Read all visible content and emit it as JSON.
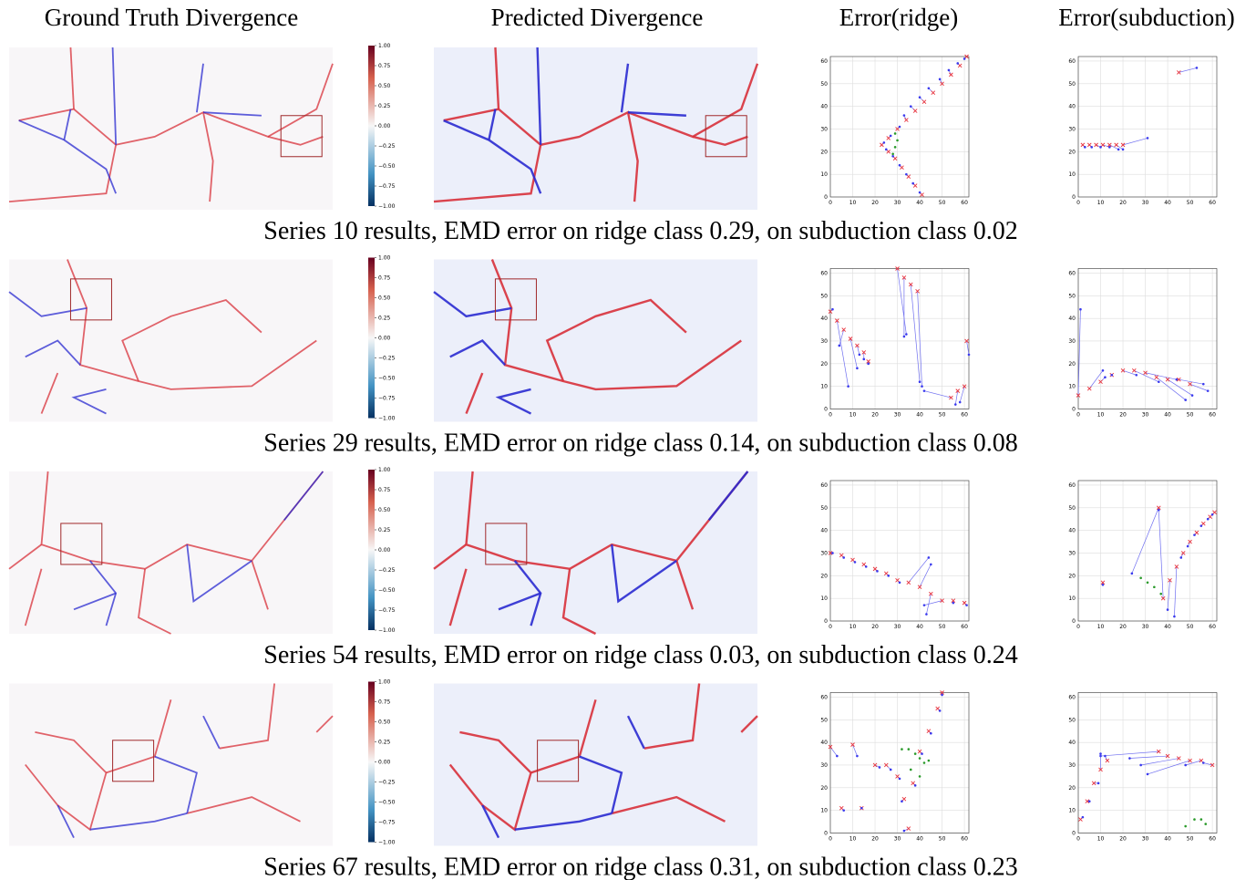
{
  "headers": [
    "Ground Truth Divergence",
    "Predicted Divergence",
    "Error(ridge)",
    "Error(subduction)"
  ],
  "colorbar": {
    "clim": [
      -1,
      1
    ],
    "ticks": [
      {
        "value": 1,
        "label": "1.00"
      },
      {
        "value": 0.75,
        "label": "0.75"
      },
      {
        "value": 0.5,
        "label": "0.50"
      },
      {
        "value": 0.25,
        "label": "0.25"
      },
      {
        "value": 0,
        "label": "0.00"
      },
      {
        "value": -0.25,
        "label": "−0.25"
      },
      {
        "value": -0.5,
        "label": "−0.50"
      },
      {
        "value": -0.75,
        "label": "−0.75"
      },
      {
        "value": -1,
        "label": "−1.00"
      }
    ]
  },
  "error_axes": {
    "xlim": [
      0,
      62
    ],
    "ylim": [
      0,
      62
    ],
    "xticks": [
      0,
      10,
      20,
      30,
      40,
      50,
      60
    ],
    "yticks": [
      0,
      10,
      20,
      30,
      40,
      50,
      60
    ],
    "grid": true,
    "links": true
  },
  "rows": [
    {
      "caption": "Series 10 results, EMD error on ridge class 0.29, on subduction class 0.02",
      "ridge": [
        {
          "color": "#e8333d",
          "marker": "x",
          "x": [
            41,
            38,
            35,
            32,
            29,
            26,
            23,
            26,
            30,
            34,
            38,
            42,
            46,
            50,
            54,
            58,
            61
          ],
          "y": [
            1,
            5,
            9,
            13,
            17,
            20,
            23,
            26,
            30,
            34,
            38,
            42,
            46,
            50,
            54,
            58,
            62
          ]
        },
        {
          "color": "#3a3aee",
          "marker": "dot",
          "x": [
            40,
            37,
            34,
            31,
            28,
            25,
            24,
            27,
            31,
            33,
            36,
            40,
            44,
            49,
            53,
            57,
            60
          ],
          "y": [
            2,
            6,
            10,
            14,
            18,
            21,
            24,
            27,
            31,
            36,
            40,
            44,
            48,
            52,
            56,
            59,
            61
          ]
        },
        {
          "color": "#2a9a2a",
          "marker": "dot",
          "x": [
            28,
            29,
            30,
            29
          ],
          "y": [
            19,
            22,
            25,
            28
          ]
        }
      ],
      "subduction": [
        {
          "color": "#e8333d",
          "marker": "x",
          "x": [
            2,
            5,
            8,
            11,
            14,
            17,
            20,
            45
          ],
          "y": [
            23,
            23,
            23,
            23,
            23,
            23,
            23,
            55
          ]
        },
        {
          "color": "#3a3aee",
          "marker": "dot",
          "x": [
            3,
            6,
            10,
            14,
            18,
            20,
            31,
            53
          ],
          "y": [
            22,
            22,
            22,
            22,
            21,
            21,
            26,
            57
          ]
        }
      ]
    },
    {
      "caption": "Series 29 results, EMD error on ridge class 0.14, on subduction class 0.08",
      "ridge": [
        {
          "color": "#e8333d",
          "marker": "x",
          "x": [
            0,
            3,
            6,
            9,
            12,
            15,
            17,
            30,
            33,
            36,
            39,
            54,
            57,
            60,
            61
          ],
          "y": [
            43,
            39,
            35,
            31,
            28,
            25,
            21,
            62,
            58,
            55,
            52,
            5,
            8,
            10,
            30
          ]
        },
        {
          "color": "#3a3aee",
          "marker": "dot",
          "x": [
            1,
            8,
            4,
            12,
            13,
            15,
            17,
            34,
            33,
            40,
            41,
            42,
            56,
            58,
            62
          ],
          "y": [
            44,
            10,
            28,
            18,
            24,
            22,
            20,
            33,
            32,
            12,
            10,
            8,
            2,
            3,
            24
          ]
        }
      ],
      "subduction": [
        {
          "color": "#e8333d",
          "marker": "x",
          "x": [
            0,
            5,
            10,
            15,
            20,
            25,
            30,
            35,
            40,
            45,
            50
          ],
          "y": [
            6,
            9,
            12,
            15,
            17,
            17,
            16,
            14,
            13,
            13,
            11
          ]
        },
        {
          "color": "#3a3aee",
          "marker": "dot",
          "x": [
            1,
            11,
            12,
            15,
            26,
            36,
            44,
            48,
            51,
            56,
            58
          ],
          "y": [
            44,
            17,
            14,
            15,
            15,
            12,
            13,
            4,
            6,
            11,
            8
          ]
        }
      ]
    },
    {
      "caption": "Series 54 results, EMD error on ridge class 0.03, on subduction class 0.24",
      "ridge": [
        {
          "color": "#e8333d",
          "marker": "x",
          "x": [
            0,
            5,
            10,
            15,
            20,
            25,
            30,
            35,
            40,
            45,
            50,
            55,
            60
          ],
          "y": [
            30,
            29,
            27,
            25,
            23,
            21,
            18,
            17,
            15,
            12,
            9,
            9,
            8
          ]
        },
        {
          "color": "#3a3aee",
          "marker": "dot",
          "x": [
            1,
            6,
            11,
            16,
            21,
            26,
            31,
            44,
            45,
            43,
            42,
            55,
            61
          ],
          "y": [
            30,
            28,
            26,
            24,
            22,
            20,
            17,
            28,
            25,
            3,
            7,
            8,
            7
          ]
        }
      ],
      "subduction": [
        {
          "color": "#e8333d",
          "marker": "x",
          "x": [
            11,
            36,
            38,
            41,
            44,
            47,
            50,
            53,
            56,
            59,
            61
          ],
          "y": [
            17,
            50,
            10,
            18,
            24,
            30,
            35,
            39,
            43,
            46,
            48
          ]
        },
        {
          "color": "#3a3aee",
          "marker": "dot",
          "x": [
            11,
            24,
            36,
            40,
            43,
            46,
            49,
            52,
            55,
            58,
            60
          ],
          "y": [
            16,
            21,
            49,
            5,
            2,
            28,
            33,
            38,
            42,
            45,
            47
          ]
        },
        {
          "color": "#2a9a2a",
          "marker": "dot",
          "x": [
            28,
            31,
            34,
            37
          ],
          "y": [
            19,
            17,
            15,
            12
          ]
        }
      ]
    },
    {
      "caption": "Series 67 results, EMD error on ridge class 0.31, on subduction class 0.23",
      "ridge": [
        {
          "color": "#e8333d",
          "marker": "x",
          "x": [
            0,
            5,
            10,
            14,
            20,
            25,
            30,
            33,
            35,
            37,
            40,
            44,
            48,
            50
          ],
          "y": [
            38,
            11,
            39,
            11,
            30,
            30,
            25,
            15,
            2,
            22,
            36,
            45,
            55,
            62
          ]
        },
        {
          "color": "#3a3aee",
          "marker": "dot",
          "x": [
            3,
            6,
            12,
            14,
            22,
            27,
            31,
            32,
            33,
            38,
            41,
            45,
            49,
            50
          ],
          "y": [
            34,
            10,
            34,
            11,
            29,
            28,
            24,
            14,
            1,
            21,
            35,
            44,
            54,
            61
          ]
        },
        {
          "color": "#2a9a2a",
          "marker": "dot",
          "x": [
            32,
            35,
            38,
            40,
            42,
            44,
            36,
            40
          ],
          "y": [
            37,
            37,
            35,
            33,
            31,
            32,
            28,
            25
          ]
        }
      ],
      "subduction": [
        {
          "color": "#e8333d",
          "marker": "x",
          "x": [
            1,
            4,
            7,
            10,
            13,
            36,
            40,
            45,
            50,
            55,
            60
          ],
          "y": [
            6,
            14,
            22,
            28,
            32,
            36,
            34,
            33,
            32,
            32,
            30
          ]
        },
        {
          "color": "#3a3aee",
          "marker": "dot",
          "x": [
            2,
            5,
            9,
            10,
            12,
            10,
            23,
            28,
            31,
            48,
            56
          ],
          "y": [
            7,
            14,
            22,
            35,
            34,
            34,
            33,
            30,
            26,
            30,
            31
          ]
        },
        {
          "color": "#2a9a2a",
          "marker": "dot",
          "x": [
            48,
            52,
            55,
            57
          ],
          "y": [
            3,
            6,
            6,
            4
          ]
        }
      ]
    }
  ]
}
